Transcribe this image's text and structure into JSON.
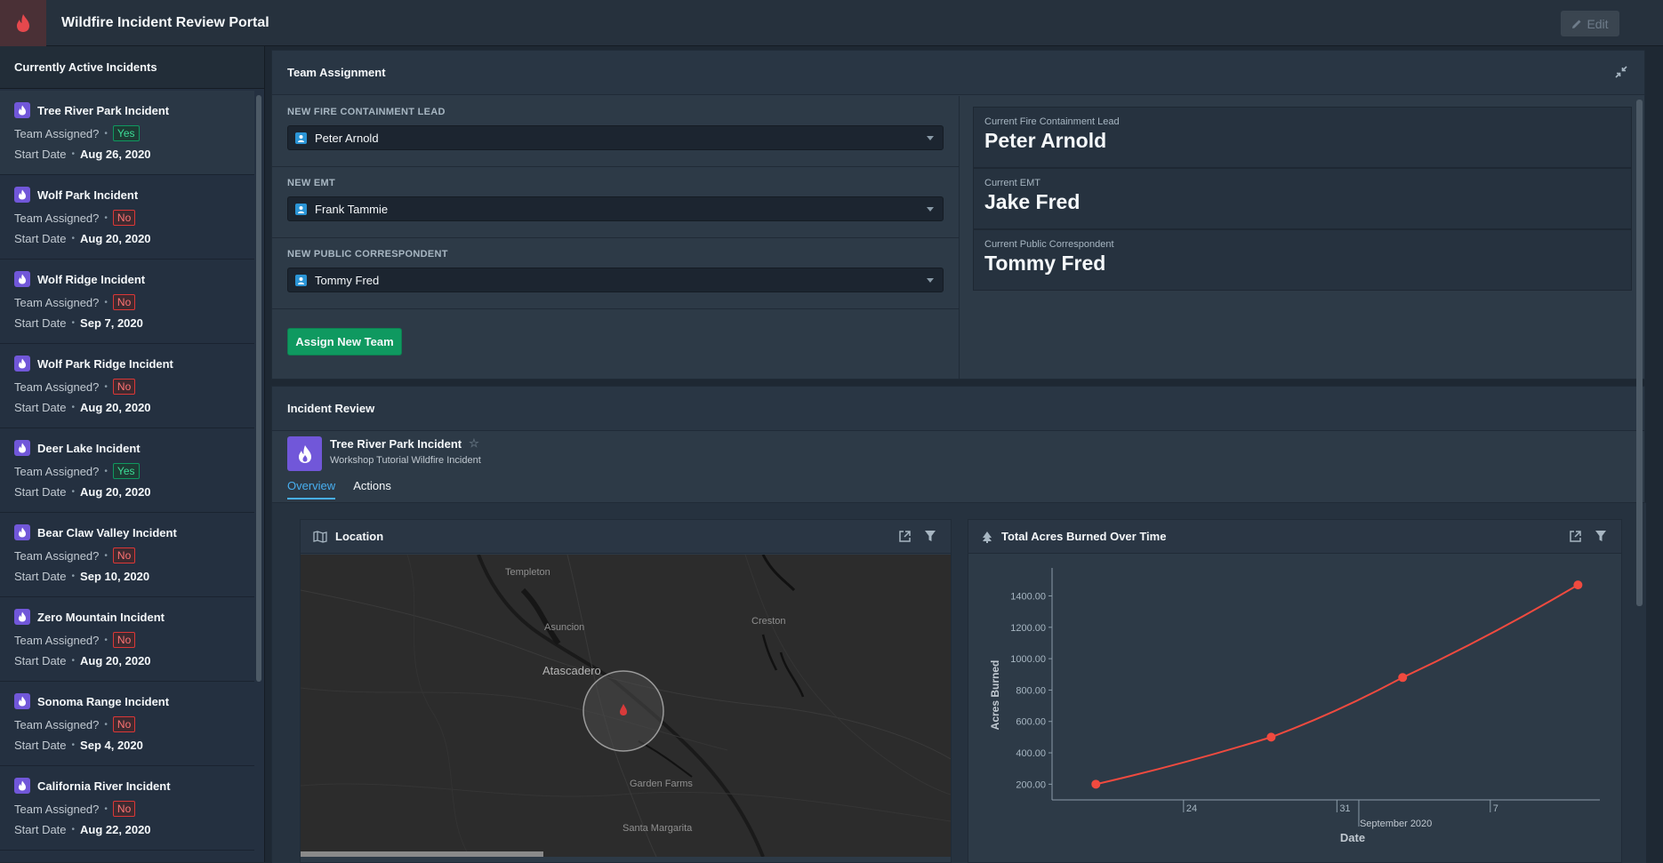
{
  "app": {
    "title": "Wildfire Incident Review Portal",
    "edit_label": "Edit",
    "accent": "#db3737"
  },
  "sidebar": {
    "title": "Currently Active Incidents",
    "assigned_label": "Team Assigned?",
    "start_label": "Start Date",
    "items": [
      {
        "name": "Tree River Park Incident",
        "assigned": "Yes",
        "date": "Aug 26, 2020"
      },
      {
        "name": "Wolf Park Incident",
        "assigned": "No",
        "date": "Aug 20, 2020"
      },
      {
        "name": "Wolf Ridge Incident",
        "assigned": "No",
        "date": "Sep 7, 2020"
      },
      {
        "name": "Wolf Park Ridge Incident",
        "assigned": "No",
        "date": "Aug 20, 2020"
      },
      {
        "name": "Deer Lake Incident",
        "assigned": "Yes",
        "date": "Aug 20, 2020"
      },
      {
        "name": "Bear Claw Valley Incident",
        "assigned": "No",
        "date": "Sep 10, 2020"
      },
      {
        "name": "Zero Mountain Incident",
        "assigned": "No",
        "date": "Aug 20, 2020"
      },
      {
        "name": "Sonoma Range Incident",
        "assigned": "No",
        "date": "Sep 4, 2020"
      },
      {
        "name": "California River Incident",
        "assigned": "No",
        "date": "Aug 22, 2020"
      }
    ]
  },
  "team": {
    "title": "Team Assignment",
    "fields": [
      {
        "label": "NEW FIRE CONTAINMENT LEAD",
        "value": "Peter Arnold"
      },
      {
        "label": "NEW EMT",
        "value": "Frank Tammie"
      },
      {
        "label": "NEW PUBLIC CORRESPONDENT",
        "value": "Tommy Fred"
      }
    ],
    "assign_label": "Assign New Team",
    "current": [
      {
        "label": "Current Fire Containment Lead",
        "value": "Peter Arnold"
      },
      {
        "label": "Current EMT",
        "value": "Jake Fred"
      },
      {
        "label": "Current Public Correspondent",
        "value": "Tommy Fred"
      }
    ]
  },
  "review": {
    "title": "Incident Review",
    "incident_name": "Tree River Park Incident",
    "incident_sub": "Workshop Tutorial Wildfire Incident",
    "tabs": [
      "Overview",
      "Actions"
    ],
    "location_title": "Location",
    "chart_title": "Total Acres Burned Over Time",
    "map_labels": [
      "Templeton",
      "Asuncion",
      "Creston",
      "Atascadero",
      "Garden Farms",
      "Santa Margarita"
    ]
  },
  "chart_data": {
    "type": "line",
    "title": "Total Acres Burned Over Time",
    "xlabel": "Date",
    "ylabel": "Acres Burned",
    "x": [
      "2020-08-20",
      "2020-08-28",
      "2020-09-03",
      "2020-09-11"
    ],
    "series": [
      {
        "values": [
          200,
          500,
          880,
          1470
        ]
      }
    ],
    "ylim": [
      100,
      1550
    ],
    "yticks": [
      "200.00",
      "400.00",
      "600.00",
      "800.00",
      "1000.00",
      "1200.00",
      "1400.00"
    ],
    "xticks": [
      "24",
      "31",
      "7"
    ],
    "xtick_month": "September 2020",
    "color": "#f04a3f"
  }
}
